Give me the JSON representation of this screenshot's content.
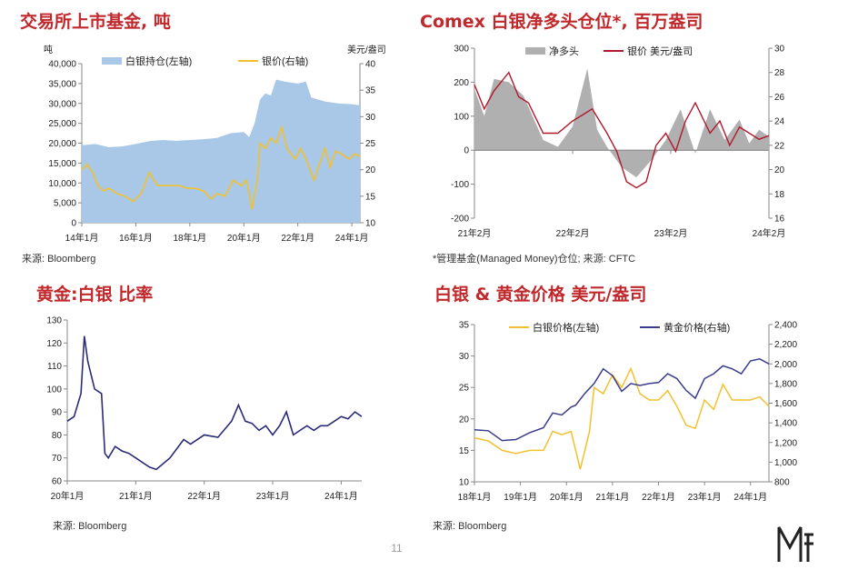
{
  "page_number": "11",
  "chart_data": [
    {
      "id": "etf",
      "type": "area+line",
      "title": "交易所上市基金, 吨",
      "ylabel_left": "吨",
      "ylabel_right": "美元/盎司",
      "source": "来源: Bloomberg",
      "left_ticks": [
        "0",
        "5,000",
        "10,000",
        "15,000",
        "20,000",
        "25,000",
        "30,000",
        "35,000",
        "40,000"
      ],
      "left_ylim": [
        0,
        40000
      ],
      "right_ticks": [
        "10",
        "15",
        "20",
        "25",
        "30",
        "35",
        "40"
      ],
      "right_ylim": [
        10,
        40
      ],
      "x_ticks": [
        "14年1月",
        "16年1月",
        "18年1月",
        "20年1月",
        "22年1月",
        "24年1月"
      ],
      "xlim": [
        2014.0,
        2024.3
      ],
      "x_tick_values": [
        2014,
        2016,
        2018,
        2020,
        2022,
        2024
      ],
      "colors": {
        "area": "#a9c8e8",
        "line": "#f2c12e"
      },
      "series": [
        {
          "name": "白银持仓(左轴)",
          "axis": "left",
          "x": [
            2014.0,
            2014.5,
            2015.0,
            2015.5,
            2016.0,
            2016.5,
            2017.0,
            2017.5,
            2018.0,
            2018.5,
            2019.0,
            2019.5,
            2020.0,
            2020.2,
            2020.4,
            2020.6,
            2020.8,
            2021.0,
            2021.2,
            2021.5,
            2022.0,
            2022.3,
            2022.5,
            2023.0,
            2023.5,
            2024.0,
            2024.3
          ],
          "values": [
            19500,
            19800,
            19000,
            19200,
            19800,
            20500,
            20800,
            20600,
            20800,
            21000,
            21300,
            22500,
            22800,
            21500,
            25000,
            31000,
            32500,
            32000,
            36000,
            35500,
            35000,
            35500,
            31500,
            30500,
            30000,
            29800,
            29500
          ]
        },
        {
          "name": "银价(右轴)",
          "axis": "right",
          "x": [
            2014.0,
            2014.2,
            2014.4,
            2014.6,
            2014.8,
            2015.0,
            2015.3,
            2015.6,
            2015.9,
            2016.2,
            2016.5,
            2016.8,
            2017.0,
            2017.3,
            2017.6,
            2017.9,
            2018.2,
            2018.5,
            2018.8,
            2019.0,
            2019.3,
            2019.6,
            2019.9,
            2020.1,
            2020.2,
            2020.3,
            2020.5,
            2020.6,
            2020.8,
            2021.0,
            2021.2,
            2021.4,
            2021.6,
            2021.9,
            2022.1,
            2022.3,
            2022.6,
            2022.8,
            2023.0,
            2023.2,
            2023.4,
            2023.6,
            2023.9,
            2024.1,
            2024.3
          ],
          "values": [
            20,
            21,
            19.5,
            17,
            16,
            16.5,
            15.5,
            15,
            14,
            15.5,
            19.5,
            17,
            17,
            17,
            17,
            16.5,
            16.5,
            16,
            14.5,
            15.5,
            15,
            18,
            17,
            18,
            15.5,
            12.5,
            18,
            25,
            24,
            26,
            25,
            28,
            24,
            22,
            24,
            22,
            18,
            21,
            24,
            20.5,
            23.5,
            23,
            22,
            23,
            22.5
          ]
        }
      ]
    },
    {
      "id": "comex",
      "type": "area+line",
      "title": "Comex 白银净多头仓位*, 百万盎司",
      "source": "*管理基金(Managed Money)仓位;  来源: CFTC",
      "left_ticks": [
        "-200",
        "-100",
        "0",
        "100",
        "200",
        "300"
      ],
      "left_ylim": [
        -200,
        300
      ],
      "right_ticks": [
        "16",
        "18",
        "20",
        "22",
        "24",
        "26",
        "28",
        "30"
      ],
      "right_ylim": [
        16,
        30
      ],
      "x_ticks": [
        "21年2月",
        "22年2月",
        "23年2月",
        "24年2月"
      ],
      "xlim": [
        2021.1,
        2024.1
      ],
      "x_tick_values": [
        2021.1,
        2022.1,
        2023.1,
        2024.1
      ],
      "colors": {
        "area": "#b0b0b0",
        "line": "#b2182b"
      },
      "series": [
        {
          "name": "净多头",
          "axis": "left",
          "x": [
            2021.1,
            2021.2,
            2021.3,
            2021.45,
            2021.6,
            2021.8,
            2021.95,
            2022.1,
            2022.25,
            2022.35,
            2022.45,
            2022.6,
            2022.75,
            2022.9,
            2023.05,
            2023.2,
            2023.35,
            2023.5,
            2023.65,
            2023.8,
            2023.9,
            2024.0,
            2024.1
          ],
          "values": [
            180,
            100,
            210,
            200,
            160,
            30,
            10,
            70,
            240,
            60,
            10,
            -50,
            -80,
            -30,
            30,
            120,
            -10,
            120,
            30,
            90,
            20,
            60,
            40
          ]
        },
        {
          "name": "银价 美元/盎司",
          "axis": "right",
          "x": [
            2021.1,
            2021.2,
            2021.3,
            2021.45,
            2021.55,
            2021.65,
            2021.8,
            2021.95,
            2022.1,
            2022.2,
            2022.3,
            2022.45,
            2022.55,
            2022.65,
            2022.75,
            2022.85,
            2022.95,
            2023.05,
            2023.15,
            2023.25,
            2023.35,
            2023.5,
            2023.6,
            2023.7,
            2023.8,
            2023.9,
            2024.0,
            2024.1
          ],
          "values": [
            27,
            25,
            26.5,
            28,
            26,
            25.5,
            23,
            23,
            24,
            24.5,
            25,
            23,
            21.5,
            19,
            18.5,
            19,
            22,
            23,
            21.5,
            24,
            25.5,
            23,
            24,
            22,
            23.5,
            23,
            22.5,
            22.8
          ]
        }
      ]
    },
    {
      "id": "ratio",
      "type": "line",
      "title": "黄金:白银 比率",
      "source": "来源: Bloomberg",
      "left_ticks": [
        "60",
        "70",
        "80",
        "90",
        "100",
        "110",
        "120",
        "130"
      ],
      "left_ylim": [
        60,
        130
      ],
      "x_ticks": [
        "20年1月",
        "21年1月",
        "22年1月",
        "23年1月",
        "24年1月"
      ],
      "xlim": [
        2020.0,
        2024.3
      ],
      "x_tick_values": [
        2020,
        2021,
        2022,
        2023,
        2024
      ],
      "colors": {
        "line": "#2b2b7a"
      },
      "series": [
        {
          "name": "黄金:白银 比率",
          "x": [
            2020.0,
            2020.1,
            2020.2,
            2020.25,
            2020.3,
            2020.4,
            2020.5,
            2020.55,
            2020.6,
            2020.7,
            2020.8,
            2020.9,
            2021.0,
            2021.1,
            2021.2,
            2021.3,
            2021.5,
            2021.7,
            2021.8,
            2022.0,
            2022.2,
            2022.4,
            2022.5,
            2022.6,
            2022.7,
            2022.8,
            2022.9,
            2023.0,
            2023.1,
            2023.2,
            2023.3,
            2023.5,
            2023.6,
            2023.7,
            2023.8,
            2023.9,
            2024.0,
            2024.1,
            2024.2,
            2024.3
          ],
          "values": [
            86,
            88,
            98,
            123,
            112,
            100,
            98,
            72,
            70,
            75,
            73,
            72,
            70,
            68,
            66,
            65,
            70,
            78,
            76,
            80,
            79,
            86,
            93,
            86,
            85,
            82,
            84,
            80,
            84,
            90,
            80,
            84,
            82,
            84,
            84,
            86,
            88,
            87,
            90,
            88
          ]
        }
      ]
    },
    {
      "id": "prices",
      "type": "line",
      "title": "白银 & 黄金价格 美元/盎司",
      "source": "来源: Bloomberg",
      "left_ticks": [
        "10",
        "15",
        "20",
        "25",
        "30",
        "35"
      ],
      "left_ylim": [
        10,
        35
      ],
      "right_ticks": [
        "800",
        "1,000",
        "1,200",
        "1,400",
        "1,600",
        "1,800",
        "2,000",
        "2,200",
        "2,400"
      ],
      "right_ylim": [
        800,
        2400
      ],
      "x_ticks": [
        "18年1月",
        "19年1月",
        "20年1月",
        "21年1月",
        "22年1月",
        "23年1月",
        "24年1月"
      ],
      "xlim": [
        2018.0,
        2024.4
      ],
      "x_tick_values": [
        2018,
        2019,
        2020,
        2021,
        2022,
        2023,
        2024
      ],
      "colors": {
        "silver": "#f2c12e",
        "gold": "#3c3c8c"
      },
      "series": [
        {
          "name": "白银价格(左轴)",
          "axis": "left",
          "x": [
            2018.0,
            2018.3,
            2018.6,
            2018.9,
            2019.2,
            2019.5,
            2019.7,
            2019.9,
            2020.1,
            2020.2,
            2020.3,
            2020.5,
            2020.6,
            2020.8,
            2021.0,
            2021.2,
            2021.4,
            2021.6,
            2021.8,
            2022.0,
            2022.2,
            2022.4,
            2022.6,
            2022.8,
            2023.0,
            2023.2,
            2023.4,
            2023.6,
            2023.8,
            2024.0,
            2024.2,
            2024.4
          ],
          "values": [
            17,
            16.5,
            15,
            14.5,
            15,
            15,
            18,
            17.5,
            18,
            15,
            12,
            18,
            25,
            24,
            27,
            25,
            28,
            24,
            23,
            23,
            24.5,
            22,
            19,
            18.5,
            23,
            21.5,
            25.5,
            23,
            23,
            23,
            23.5,
            22
          ]
        },
        {
          "name": "黄金价格(右轴)",
          "axis": "right",
          "x": [
            2018.0,
            2018.3,
            2018.6,
            2018.9,
            2019.2,
            2019.5,
            2019.7,
            2019.9,
            2020.1,
            2020.2,
            2020.4,
            2020.6,
            2020.8,
            2021.0,
            2021.2,
            2021.4,
            2021.6,
            2021.8,
            2022.0,
            2022.2,
            2022.4,
            2022.6,
            2022.8,
            2023.0,
            2023.2,
            2023.4,
            2023.6,
            2023.8,
            2024.0,
            2024.2,
            2024.4
          ],
          "values": [
            1330,
            1320,
            1220,
            1230,
            1300,
            1350,
            1500,
            1480,
            1560,
            1580,
            1700,
            1800,
            1950,
            1880,
            1720,
            1800,
            1780,
            1800,
            1810,
            1900,
            1850,
            1730,
            1650,
            1850,
            1900,
            1980,
            1950,
            1900,
            2030,
            2050,
            2000
          ]
        }
      ]
    }
  ]
}
